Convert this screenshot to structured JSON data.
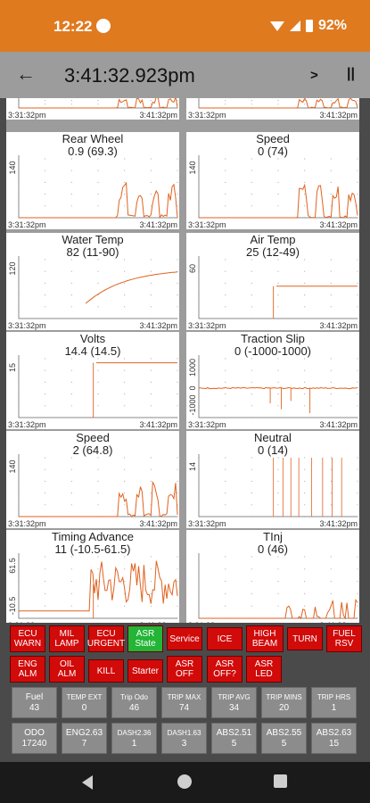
{
  "status": {
    "time": "12:22",
    "battery": "92%"
  },
  "toolbar": {
    "title": "3:41:32.923pm",
    "play": ">",
    "pause": "||"
  },
  "axis": {
    "t_start": "3:31:32pm",
    "t_end": "3:41:32pm"
  },
  "charts": [
    {
      "title": "",
      "value": "",
      "ymax": "",
      "ymin": ""
    },
    {
      "title": "",
      "value": "",
      "ymax": "",
      "ymin": ""
    },
    {
      "title": "Rear Wheel",
      "value": "0.9 (69.3)",
      "ymax": "140",
      "ymin": ""
    },
    {
      "title": "Speed",
      "value": "0 (74)",
      "ymax": "140",
      "ymin": ""
    },
    {
      "title": "Water Temp",
      "value": "82 (11-90)",
      "ymax": "120",
      "ymin": ""
    },
    {
      "title": "Air Temp",
      "value": "25 (12-49)",
      "ymax": "60",
      "ymin": ""
    },
    {
      "title": "Volts",
      "value": "14.4 (14.5)",
      "ymax": "15",
      "ymin": ""
    },
    {
      "title": "Traction Slip",
      "value": "0 (-1000-1000)",
      "ymax": "1000",
      "ymid": "0",
      "ymin": "-1000"
    },
    {
      "title": "Speed",
      "value": "2 (64.8)",
      "ymax": "140",
      "ymin": ""
    },
    {
      "title": "Neutral",
      "value": "0 (14)",
      "ymax": "14",
      "ymin": ""
    },
    {
      "title": "Timing Advance",
      "value": "11 (-10.5-61.5)",
      "ymax": "61.5",
      "ymin": "-10.5"
    },
    {
      "title": "TInj",
      "value": "0 (46)",
      "ymax": "",
      "ymin": ""
    }
  ],
  "indicators": [
    {
      "label": "ECU WARN",
      "state": "red"
    },
    {
      "label": "MIL LAMP",
      "state": "red"
    },
    {
      "label": "ECU URGENT",
      "state": "red"
    },
    {
      "label": "ASR State",
      "state": "green"
    },
    {
      "label": "Service",
      "state": "red"
    },
    {
      "label": "ICE",
      "state": "red"
    },
    {
      "label": "HIGH BEAM",
      "state": "red"
    },
    {
      "label": "TURN",
      "state": "red"
    },
    {
      "label": "FUEL RSV",
      "state": "red"
    },
    {
      "label": "ENG ALM",
      "state": "red"
    },
    {
      "label": "OIL ALM",
      "state": "red"
    },
    {
      "label": "KILL",
      "state": "red"
    },
    {
      "label": "Starter",
      "state": "red"
    },
    {
      "label": "ASR OFF",
      "state": "red"
    },
    {
      "label": "ASR OFF?",
      "state": "red"
    },
    {
      "label": "ASR LED",
      "state": "red"
    }
  ],
  "gauges": [
    {
      "label": "Fuel",
      "value": "43"
    },
    {
      "label": "TEMP EXT",
      "value": "0"
    },
    {
      "label": "Trip Odo",
      "value": "46"
    },
    {
      "label": "TRIP MAX",
      "value": "74"
    },
    {
      "label": "TRIP AVG",
      "value": "34"
    },
    {
      "label": "TRIP MINS",
      "value": "20"
    },
    {
      "label": "TRIP HRS",
      "value": "1"
    },
    {
      "label": "ODO",
      "value": "17240"
    },
    {
      "label": "ENG2.63",
      "value": "7"
    },
    {
      "label": "DASH2.36",
      "value": "1"
    },
    {
      "label": "DASH1.63",
      "value": "3"
    },
    {
      "label": "ABS2.51",
      "value": "5"
    },
    {
      "label": "ABS2.55",
      "value": "5"
    },
    {
      "label": "ABS2.63",
      "value": "15"
    }
  ],
  "colors": {
    "accent": "#e07a1f",
    "trace": "#e0621f",
    "indicator_on": "#22b536",
    "indicator_off": "#d10a0a"
  },
  "icons": {
    "back": "arrow-left-icon",
    "play": "play-icon",
    "pause": "pause-icon"
  }
}
